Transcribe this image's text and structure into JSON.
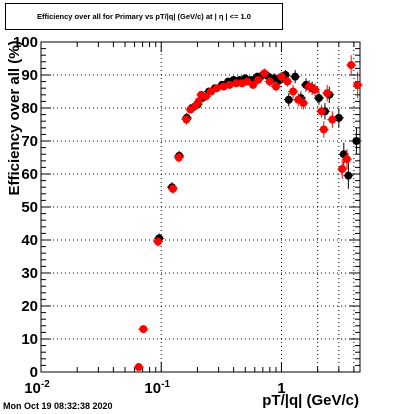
{
  "title": "Efficiency over all for Primary vs pT/|q| (GeV/c) at | η | <= 1.0",
  "timestamp": "Mon Oct 19 08:32:38 2020",
  "chart_data": {
    "type": "scatter",
    "xlabel": "pT/|q| (GeV/c)",
    "ylabel": "Efficiency over all (%)",
    "xscale": "log",
    "xlim": [
      0.01,
      4.5
    ],
    "ylim": [
      0,
      100
    ],
    "grid": true,
    "x_ticks": [
      {
        "value": 0.01,
        "base": "10",
        "exp": "-2"
      },
      {
        "value": 0.1,
        "base": "10",
        "exp": "-1"
      },
      {
        "value": 1,
        "base": "1",
        "exp": ""
      }
    ],
    "y_ticks": [
      "0",
      "10",
      "20",
      "30",
      "40",
      "50",
      "60",
      "70",
      "80",
      "90",
      "100"
    ],
    "series": [
      {
        "color": "#000000",
        "points": [
          {
            "x": 0.096,
            "y": 40.5,
            "err": 1.5
          },
          {
            "x": 0.123,
            "y": 56,
            "err": 1.5
          },
          {
            "x": 0.141,
            "y": 65.5,
            "err": 1.5
          },
          {
            "x": 0.163,
            "y": 77,
            "err": 1.5
          },
          {
            "x": 0.18,
            "y": 80,
            "err": 1
          },
          {
            "x": 0.2,
            "y": 81,
            "err": 1
          },
          {
            "x": 0.22,
            "y": 83,
            "err": 1
          },
          {
            "x": 0.25,
            "y": 85,
            "err": 1
          },
          {
            "x": 0.28,
            "y": 86,
            "err": 1
          },
          {
            "x": 0.32,
            "y": 87,
            "err": 1
          },
          {
            "x": 0.36,
            "y": 88,
            "err": 1
          },
          {
            "x": 0.4,
            "y": 88.5,
            "err": 1
          },
          {
            "x": 0.45,
            "y": 88.5,
            "err": 1
          },
          {
            "x": 0.5,
            "y": 89,
            "err": 1
          },
          {
            "x": 0.56,
            "y": 88.5,
            "err": 1
          },
          {
            "x": 0.63,
            "y": 89.5,
            "err": 1
          },
          {
            "x": 0.7,
            "y": 90,
            "err": 1.5
          },
          {
            "x": 0.78,
            "y": 89.5,
            "err": 1.5
          },
          {
            "x": 0.87,
            "y": 89,
            "err": 1.5
          },
          {
            "x": 0.97,
            "y": 88.5,
            "err": 1.5
          },
          {
            "x": 1.08,
            "y": 90,
            "err": 1.5
          },
          {
            "x": 1.15,
            "y": 82.5,
            "err": 2
          },
          {
            "x": 1.3,
            "y": 89.5,
            "err": 2
          },
          {
            "x": 1.45,
            "y": 83,
            "err": 2
          },
          {
            "x": 1.6,
            "y": 87,
            "err": 2
          },
          {
            "x": 1.8,
            "y": 86,
            "err": 2
          },
          {
            "x": 2.05,
            "y": 83,
            "err": 2
          },
          {
            "x": 2.3,
            "y": 79,
            "err": 2.5
          },
          {
            "x": 2.5,
            "y": 84,
            "err": 2.5
          },
          {
            "x": 3.0,
            "y": 77,
            "err": 3
          },
          {
            "x": 3.3,
            "y": 66,
            "err": 3.5
          },
          {
            "x": 3.6,
            "y": 59.5,
            "err": 4
          },
          {
            "x": 4.2,
            "y": 70,
            "err": 4
          }
        ]
      },
      {
        "color": "#ff0000",
        "points": [
          {
            "x": 0.065,
            "y": 1.5,
            "err": 0.5
          },
          {
            "x": 0.071,
            "y": 13,
            "err": 1
          },
          {
            "x": 0.094,
            "y": 39.5,
            "err": 1.5
          },
          {
            "x": 0.125,
            "y": 55.5,
            "err": 1.5
          },
          {
            "x": 0.14,
            "y": 65,
            "err": 1.5
          },
          {
            "x": 0.162,
            "y": 76.5,
            "err": 1.5
          },
          {
            "x": 0.175,
            "y": 79.5,
            "err": 1
          },
          {
            "x": 0.19,
            "y": 80.5,
            "err": 1
          },
          {
            "x": 0.205,
            "y": 82,
            "err": 1
          },
          {
            "x": 0.215,
            "y": 84,
            "err": 1
          },
          {
            "x": 0.235,
            "y": 83.5,
            "err": 1
          },
          {
            "x": 0.26,
            "y": 85,
            "err": 1
          },
          {
            "x": 0.29,
            "y": 86,
            "err": 1
          },
          {
            "x": 0.33,
            "y": 86.5,
            "err": 1
          },
          {
            "x": 0.37,
            "y": 87,
            "err": 1
          },
          {
            "x": 0.42,
            "y": 87.5,
            "err": 1
          },
          {
            "x": 0.47,
            "y": 87.5,
            "err": 1
          },
          {
            "x": 0.52,
            "y": 88,
            "err": 1
          },
          {
            "x": 0.58,
            "y": 87,
            "err": 1
          },
          {
            "x": 0.64,
            "y": 88.5,
            "err": 1
          },
          {
            "x": 0.72,
            "y": 90.5,
            "err": 1.5
          },
          {
            "x": 0.8,
            "y": 88,
            "err": 1.5
          },
          {
            "x": 0.9,
            "y": 86.5,
            "err": 1.5
          },
          {
            "x": 1.0,
            "y": 89.5,
            "err": 1.5
          },
          {
            "x": 1.12,
            "y": 88,
            "err": 1.5
          },
          {
            "x": 1.25,
            "y": 85,
            "err": 2
          },
          {
            "x": 1.38,
            "y": 82.5,
            "err": 2
          },
          {
            "x": 1.52,
            "y": 81.5,
            "err": 2
          },
          {
            "x": 1.7,
            "y": 86.5,
            "err": 2
          },
          {
            "x": 1.9,
            "y": 85.5,
            "err": 2
          },
          {
            "x": 2.15,
            "y": 79,
            "err": 2
          },
          {
            "x": 2.25,
            "y": 73.5,
            "err": 2.5
          },
          {
            "x": 2.4,
            "y": 84.5,
            "err": 2.5
          },
          {
            "x": 2.65,
            "y": 76.5,
            "err": 2.5
          },
          {
            "x": 3.2,
            "y": 61.5,
            "err": 3
          },
          {
            "x": 3.5,
            "y": 64.5,
            "err": 3
          },
          {
            "x": 3.8,
            "y": 93,
            "err": 3
          },
          {
            "x": 4.3,
            "y": 87,
            "err": 4
          }
        ]
      }
    ]
  }
}
